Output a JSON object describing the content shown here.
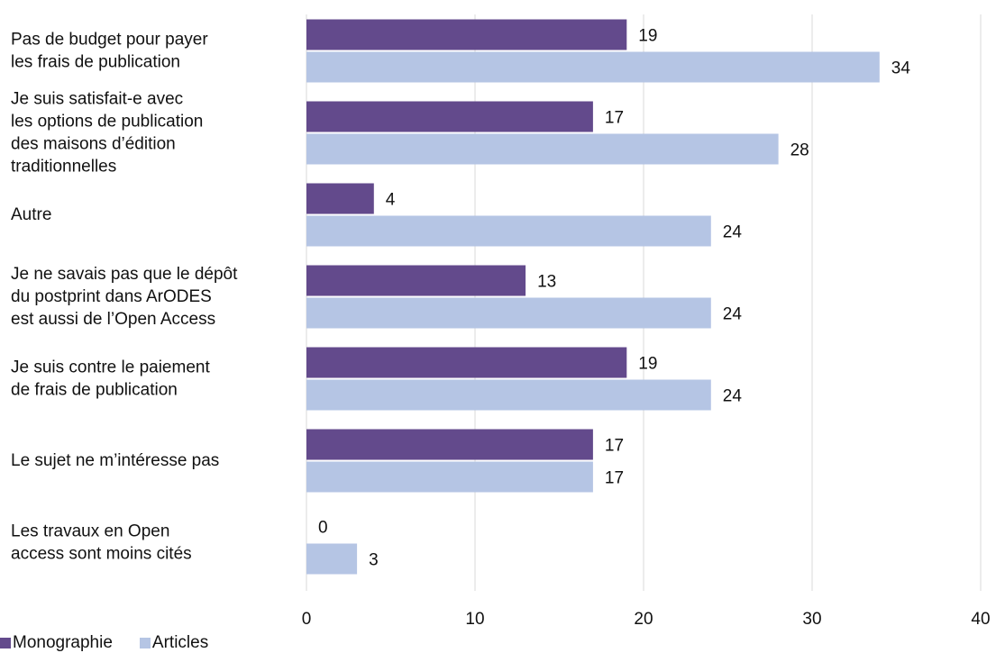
{
  "chart_data": {
    "type": "bar",
    "orientation": "horizontal",
    "categories": [
      [
        "Pas de budget pour payer",
        "les frais de publication"
      ],
      [
        "Je suis satisfait-e avec",
        "les options de publication",
        "des maisons d’édition",
        "traditionnelles"
      ],
      [
        "Autre"
      ],
      [
        "Je ne savais pas que le dépôt",
        "du postprint dans ArODES",
        "est aussi de l’Open Access"
      ],
      [
        "Je suis contre le paiement",
        "de frais de publication"
      ],
      [
        "Le sujet ne m’intéresse pas"
      ],
      [
        "Les travaux en Open",
        "access sont moins cités"
      ]
    ],
    "series": [
      {
        "name": "Monographie",
        "color": "#634a8c",
        "values": [
          19,
          17,
          4,
          13,
          19,
          17,
          0
        ]
      },
      {
        "name": "Articles",
        "color": "#b5c5e4",
        "values": [
          34,
          28,
          24,
          24,
          24,
          17,
          3
        ]
      }
    ],
    "x_ticks": [
      "0",
      "10",
      "20",
      "30",
      "40"
    ],
    "xlim": [
      0,
      40
    ],
    "grid": true,
    "legend_position": "bottom-left"
  }
}
